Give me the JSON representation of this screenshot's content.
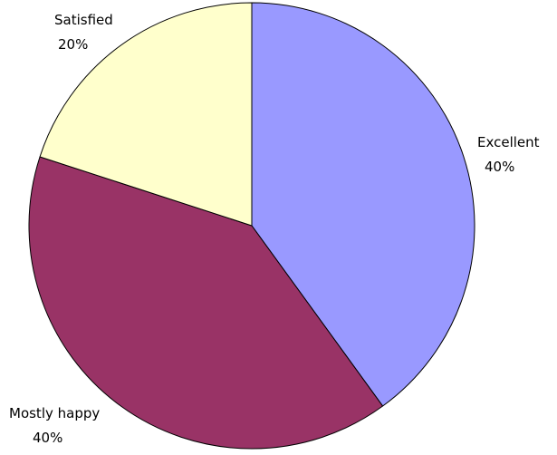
{
  "chart_data": {
    "type": "pie",
    "title": "",
    "slices": [
      {
        "label": "Excellent",
        "percent_label": "40%",
        "value": 40,
        "color": "#9999FF"
      },
      {
        "label": "Mostly happy",
        "percent_label": "40%",
        "value": 40,
        "color": "#993366"
      },
      {
        "label": "Satisfied",
        "percent_label": "20%",
        "value": 20,
        "color": "#FFFFCC"
      }
    ],
    "start_angle": "12 o'clock",
    "direction": "clockwise",
    "slice_border_color": "#000000",
    "data_labels": "category name and percentage, outside slices"
  }
}
